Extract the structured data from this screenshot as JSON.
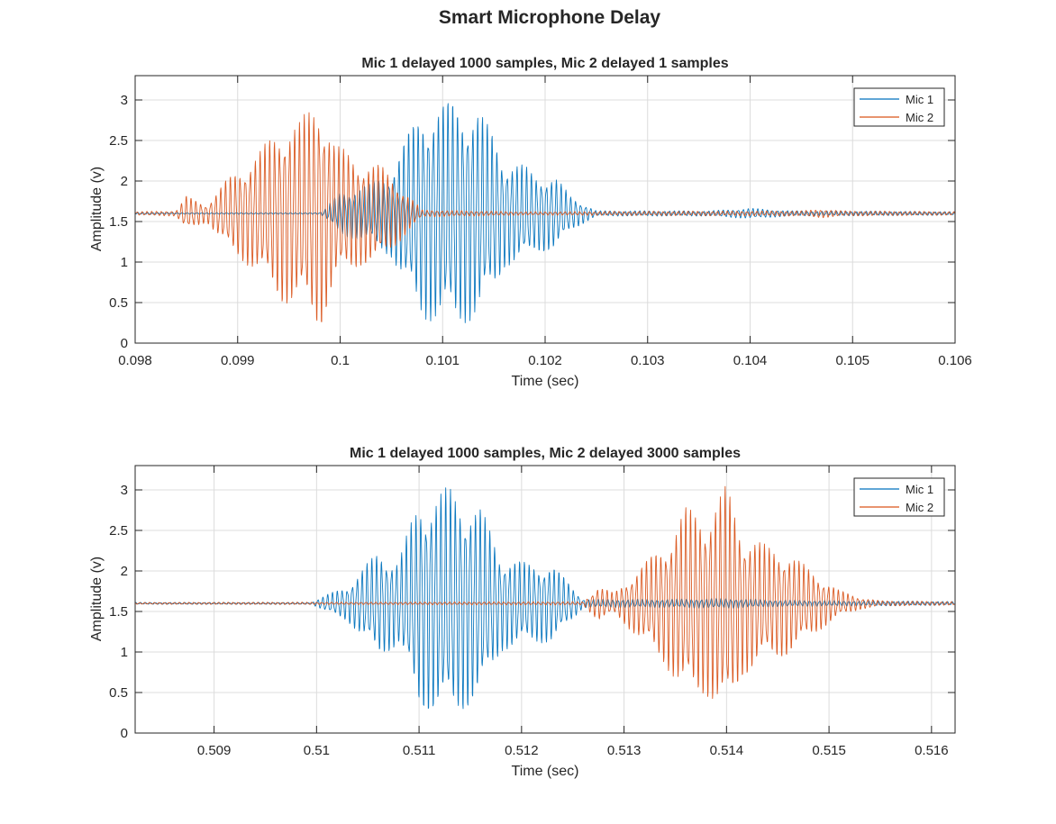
{
  "title": "Smart Microphone Delay",
  "colors": {
    "mic1": "#0072BD",
    "mic2": "#D95319",
    "axes": "#262626",
    "grid": "#dcdcdc"
  },
  "chart_data": [
    {
      "type": "line",
      "title": "Mic 1 delayed 1000 samples, Mic 2 delayed 1 samples",
      "xlabel": "Time (sec)",
      "ylabel": "Amplitude (v)",
      "xlim": [
        0.098,
        0.106
      ],
      "ylim": [
        0,
        3.3
      ],
      "xticks": [
        0.098,
        0.099,
        0.1,
        0.101,
        0.102,
        0.103,
        0.104,
        0.105,
        0.106
      ],
      "xtick_labels": [
        "0.098",
        "0.099",
        "0.1",
        "0.101",
        "0.102",
        "0.103",
        "0.104",
        "0.105",
        "0.106"
      ],
      "yticks": [
        0,
        0.5,
        1,
        1.5,
        2,
        2.5,
        3
      ],
      "ytick_labels": [
        "0",
        "0.5",
        "1",
        "1.5",
        "2",
        "2.5",
        "3"
      ],
      "grid": true,
      "legend": "top-right",
      "series": [
        {
          "name": "Mic 1",
          "color": "#0072BD",
          "baseline": 1.6,
          "envelope": [
            [
              0.098,
              0.01
            ],
            [
              0.0998,
              0.01
            ],
            [
              0.09985,
              0.05
            ],
            [
              0.1,
              0.25
            ],
            [
              0.1003,
              0.35
            ],
            [
              0.1005,
              0.5
            ],
            [
              0.10065,
              0.9
            ],
            [
              0.1008,
              1.2
            ],
            [
              0.1011,
              1.3
            ],
            [
              0.10135,
              1.2
            ],
            [
              0.1015,
              0.9
            ],
            [
              0.1016,
              0.62
            ],
            [
              0.1018,
              0.55
            ],
            [
              0.1019,
              0.45
            ],
            [
              0.1021,
              0.42
            ],
            [
              0.10225,
              0.2
            ],
            [
              0.1025,
              0.03
            ],
            [
              0.1036,
              0.03
            ],
            [
              0.104,
              0.06
            ],
            [
              0.1044,
              0.03
            ],
            [
              0.106,
              0.02
            ]
          ]
        },
        {
          "name": "Mic 2",
          "color": "#D95319",
          "baseline": 1.6,
          "envelope": [
            [
              0.098,
              0.02
            ],
            [
              0.0984,
              0.03
            ],
            [
              0.0985,
              0.2
            ],
            [
              0.0987,
              0.1
            ],
            [
              0.0989,
              0.4
            ],
            [
              0.0992,
              0.7
            ],
            [
              0.09945,
              1.05
            ],
            [
              0.0996,
              1.05
            ],
            [
              0.0998,
              1.35
            ],
            [
              0.09995,
              0.8
            ],
            [
              0.1002,
              0.6
            ],
            [
              0.1004,
              0.55
            ],
            [
              0.1006,
              0.3
            ],
            [
              0.1008,
              0.04
            ],
            [
              0.1018,
              0.02
            ],
            [
              0.1045,
              0.03
            ],
            [
              0.1047,
              0.05
            ],
            [
              0.1049,
              0.03
            ],
            [
              0.106,
              0.02
            ]
          ]
        }
      ]
    },
    {
      "type": "line",
      "title": "Mic 1 delayed 1000 samples, Mic 2 delayed 3000 samples",
      "xlabel": "Time (sec)",
      "ylabel": "Amplitude (v)",
      "xlim": [
        0.50823,
        0.51623
      ],
      "ylim": [
        0,
        3.3
      ],
      "xticks": [
        0.509,
        0.51,
        0.511,
        0.512,
        0.513,
        0.514,
        0.515,
        0.516
      ],
      "xtick_labels": [
        "0.509",
        "0.51",
        "0.511",
        "0.512",
        "0.513",
        "0.514",
        "0.515",
        "0.516"
      ],
      "yticks": [
        0,
        0.5,
        1,
        1.5,
        2,
        2.5,
        3
      ],
      "ytick_labels": [
        "0",
        "0.5",
        "1",
        "1.5",
        "2",
        "2.5",
        "3"
      ],
      "grid": true,
      "legend": "top-right",
      "series": [
        {
          "name": "Mic 1",
          "color": "#0072BD",
          "baseline": 1.6,
          "envelope": [
            [
              0.50823,
              0.01
            ],
            [
              0.50995,
              0.01
            ],
            [
              0.5101,
              0.1
            ],
            [
              0.5103,
              0.2
            ],
            [
              0.5106,
              0.6
            ],
            [
              0.5108,
              0.5
            ],
            [
              0.511,
              1.2
            ],
            [
              0.5113,
              1.33
            ],
            [
              0.5116,
              1.1
            ],
            [
              0.5118,
              0.55
            ],
            [
              0.5121,
              0.45
            ],
            [
              0.5123,
              0.45
            ],
            [
              0.51245,
              0.25
            ],
            [
              0.5126,
              0.05
            ],
            [
              0.5134,
              0.05
            ],
            [
              0.514,
              0.06
            ],
            [
              0.5145,
              0.04
            ],
            [
              0.51623,
              0.02
            ]
          ]
        },
        {
          "name": "Mic 2",
          "color": "#D95319",
          "baseline": 1.6,
          "envelope": [
            [
              0.50823,
              0.01
            ],
            [
              0.5126,
              0.02
            ],
            [
              0.51275,
              0.2
            ],
            [
              0.5129,
              0.12
            ],
            [
              0.5131,
              0.35
            ],
            [
              0.5134,
              0.7
            ],
            [
              0.5136,
              1.1
            ],
            [
              0.5138,
              1.05
            ],
            [
              0.514,
              1.35
            ],
            [
              0.51415,
              0.85
            ],
            [
              0.5144,
              0.65
            ],
            [
              0.5146,
              0.6
            ],
            [
              0.5148,
              0.4
            ],
            [
              0.5151,
              0.15
            ],
            [
              0.5153,
              0.07
            ],
            [
              0.5155,
              0.03
            ],
            [
              0.51623,
              0.02
            ]
          ]
        }
      ]
    }
  ]
}
